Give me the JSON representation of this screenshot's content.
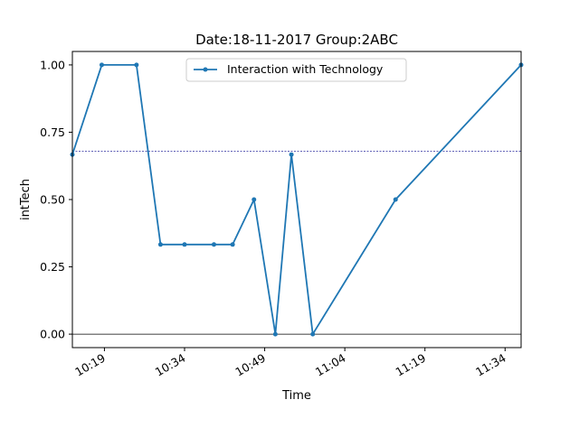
{
  "chart_data": {
    "type": "line",
    "title": "Date:18-11-2017  Group:2ABC",
    "xlabel": "Time",
    "ylabel": "intTech",
    "x_unit": "time (HH:MM)",
    "xlim": [
      "10:13",
      "11:37"
    ],
    "ylim": [
      -0.05,
      1.05
    ],
    "x_ticks": [
      "10:19",
      "10:34",
      "10:49",
      "11:04",
      "11:19",
      "11:34"
    ],
    "y_ticks": [
      "0.00",
      "0.25",
      "0.50",
      "0.75",
      "1.00"
    ],
    "legend_position": "top-center",
    "grid": false,
    "series": [
      {
        "name": "Interaction with Technology",
        "color": "#1f77b4",
        "points": [
          {
            "x": "10:13",
            "y": 0.667
          },
          {
            "x": "10:18.5",
            "y": 1.0
          },
          {
            "x": "10:25",
            "y": 1.0
          },
          {
            "x": "10:29.5",
            "y": 0.333
          },
          {
            "x": "10:34",
            "y": 0.333
          },
          {
            "x": "10:39.5",
            "y": 0.333
          },
          {
            "x": "10:43",
            "y": 0.333
          },
          {
            "x": "10:47",
            "y": 0.5
          },
          {
            "x": "10:51",
            "y": 0.0
          },
          {
            "x": "10:54",
            "y": 0.667
          },
          {
            "x": "10:58",
            "y": 0.0
          },
          {
            "x": "11:13.5",
            "y": 0.5
          },
          {
            "x": "11:37",
            "y": 1.0
          }
        ]
      }
    ],
    "reference_lines": [
      {
        "axis": "y",
        "value": 0.68,
        "style": "dashed",
        "color": "#00008b"
      },
      {
        "axis": "y",
        "value": 0.0,
        "style": "solid",
        "color": "#000000"
      }
    ]
  }
}
